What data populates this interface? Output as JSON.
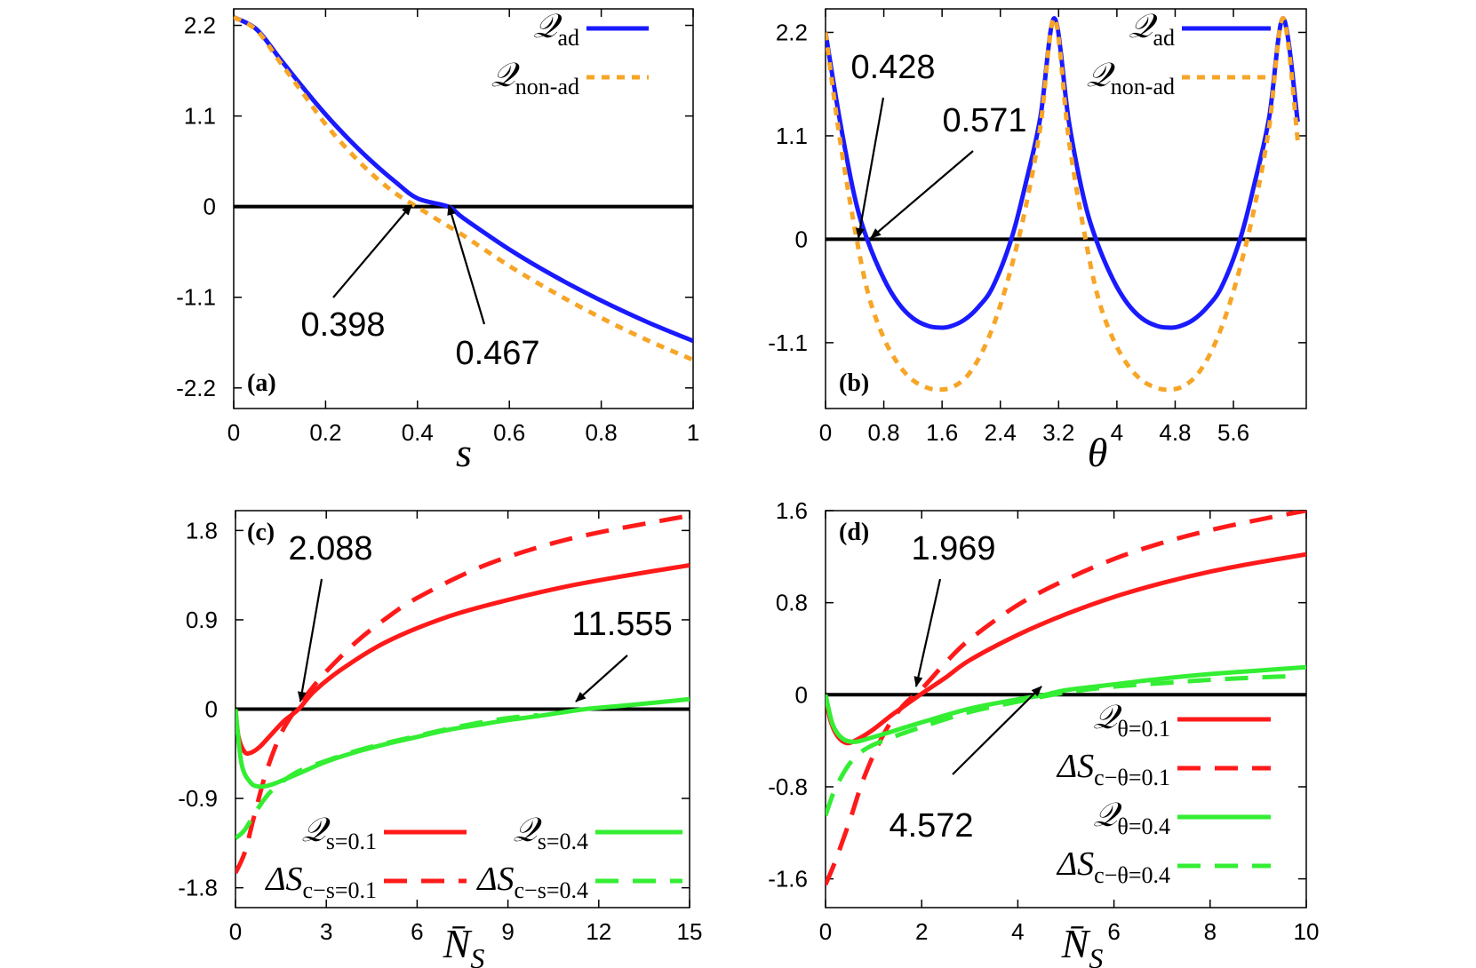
{
  "colors": {
    "blue": "#1a1aff",
    "orange": "#f7a527",
    "red": "#ff1a1a",
    "green": "#33ee33",
    "axis": "#000000"
  },
  "chart_data": [
    {
      "type": "line",
      "panel_label": "(a)",
      "xlabel": "s",
      "xlim": [
        0,
        1
      ],
      "ylim": [
        -2.45,
        2.4
      ],
      "xticks": [
        0,
        0.2,
        0.4,
        0.6,
        0.8,
        1
      ],
      "xtick_labels": [
        "0",
        "0.2",
        "0.4",
        "0.6",
        "0.8",
        "1"
      ],
      "yticks": [
        2.2,
        1.1,
        0,
        -1.1,
        -2.2
      ],
      "ytick_labels": [
        "2.2",
        "1.1",
        "0",
        "-1.1",
        "-2.2"
      ],
      "legend": [
        {
          "main": "𝒬",
          "sub": "ad",
          "color": "#1a1aff",
          "dash": "solid"
        },
        {
          "main": "𝒬",
          "sub": "non-ad",
          "color": "#f7a527",
          "dash": "dotted"
        }
      ],
      "series": [
        {
          "name": "Q_ad",
          "color": "#1a1aff",
          "dash": "solid",
          "x": [
            0,
            0.05,
            0.1,
            0.15,
            0.2,
            0.25,
            0.3,
            0.35,
            0.4,
            0.467,
            0.5,
            0.6,
            0.7,
            0.8,
            0.9,
            1.0
          ],
          "y": [
            2.3,
            2.15,
            1.8,
            1.45,
            1.12,
            0.82,
            0.55,
            0.31,
            0.1,
            0,
            -0.14,
            -0.52,
            -0.85,
            -1.14,
            -1.4,
            -1.63
          ]
        },
        {
          "name": "Q_non-ad",
          "color": "#f7a527",
          "dash": "dotted",
          "x": [
            0,
            0.05,
            0.1,
            0.15,
            0.2,
            0.25,
            0.3,
            0.35,
            0.398,
            0.45,
            0.5,
            0.6,
            0.7,
            0.8,
            0.9,
            1.0
          ],
          "y": [
            2.3,
            2.14,
            1.76,
            1.38,
            1.0,
            0.68,
            0.4,
            0.17,
            0,
            -0.18,
            -0.35,
            -0.72,
            -1.05,
            -1.35,
            -1.62,
            -1.86
          ]
        },
        {
          "name": "zero",
          "color": "#000000",
          "dash": "solid",
          "x": [
            0,
            1
          ],
          "y": [
            0,
            0
          ]
        }
      ],
      "annotations": [
        {
          "text": "0.398",
          "x": 0.398,
          "y": 0
        },
        {
          "text": "0.467",
          "x": 0.467,
          "y": 0
        }
      ]
    },
    {
      "type": "line",
      "panel_label": "(b)",
      "xlabel": "θ",
      "xlim": [
        0,
        6.6
      ],
      "ylim": [
        -1.8,
        2.45
      ],
      "xticks": [
        0,
        0.8,
        1.6,
        2.4,
        3.2,
        4,
        4.8,
        5.6
      ],
      "xtick_labels": [
        "0",
        "0.8",
        "1.6",
        "2.4",
        "3.2",
        "4",
        "4.8",
        "5.6"
      ],
      "yticks": [
        2.2,
        1.1,
        0,
        -1.1
      ],
      "ytick_labels": [
        "2.2",
        "1.1",
        "0",
        "-1.1"
      ],
      "legend": [
        {
          "main": "𝒬",
          "sub": "ad",
          "color": "#1a1aff",
          "dash": "solid"
        },
        {
          "main": "𝒬",
          "sub": "non-ad",
          "color": "#f7a527",
          "dash": "dotted"
        }
      ],
      "series": [
        {
          "name": "Q_ad",
          "color": "#1a1aff",
          "dash": "solid",
          "period": 3.1416,
          "x": [
            0,
            0.2,
            0.4,
            0.571,
            0.8,
            1.0,
            1.2,
            1.4,
            1.571,
            1.7,
            1.9,
            2.1,
            2.3,
            2.55,
            2.75,
            2.95,
            3.1416
          ],
          "y": [
            2.2,
            1.25,
            0.45,
            0,
            -0.42,
            -0.68,
            -0.84,
            -0.92,
            -0.94,
            -0.93,
            -0.86,
            -0.72,
            -0.5,
            0,
            0.6,
            1.3,
            2.35
          ]
        },
        {
          "name": "Q_non-ad",
          "color": "#f7a527",
          "dash": "dotted",
          "period": 3.1416,
          "x": [
            0,
            0.2,
            0.428,
            0.6,
            0.8,
            1.0,
            1.2,
            1.4,
            1.571,
            1.75,
            1.95,
            2.15,
            2.35,
            2.55,
            2.75,
            2.95,
            3.1416
          ],
          "y": [
            2.2,
            1.05,
            0,
            -0.62,
            -1.05,
            -1.33,
            -1.5,
            -1.58,
            -1.6,
            -1.57,
            -1.45,
            -1.2,
            -0.82,
            -0.3,
            0.35,
            1.2,
            2.35
          ]
        },
        {
          "name": "zero",
          "color": "#000000",
          "dash": "solid",
          "x": [
            0,
            6.6
          ],
          "y": [
            0,
            0
          ]
        }
      ],
      "annotations": [
        {
          "text": "0.428",
          "x": 0.428,
          "y": 0
        },
        {
          "text": "0.571",
          "x": 0.571,
          "y": 0
        }
      ]
    },
    {
      "type": "line",
      "panel_label": "(c)",
      "xlabel": "N̄",
      "xlabel_sub": "S",
      "xlim": [
        0,
        15
      ],
      "ylim": [
        -2.0,
        2.0
      ],
      "xticks": [
        0,
        3,
        6,
        9,
        12,
        15
      ],
      "xtick_labels": [
        "0",
        "3",
        "6",
        "9",
        "12",
        "15"
      ],
      "yticks": [
        1.8,
        0.9,
        0,
        -0.9,
        -1.8
      ],
      "ytick_labels": [
        "1.8",
        "0.9",
        "0",
        "-0.9",
        "-1.8"
      ],
      "legend": [
        {
          "main": "𝒬",
          "sub": "s=0.1",
          "color": "#ff1a1a",
          "dash": "solid"
        },
        {
          "main": "ΔS",
          "sub": "c−s=0.1",
          "color": "#ff1a1a",
          "dash": "dashed"
        },
        {
          "main": "𝒬",
          "sub": "s=0.4",
          "color": "#33ee33",
          "dash": "solid"
        },
        {
          "main": "ΔS",
          "sub": "c−s=0.4",
          "color": "#33ee33",
          "dash": "dashed"
        }
      ],
      "series": [
        {
          "name": "Q_s=0.1",
          "color": "#ff1a1a",
          "dash": "solid",
          "x": [
            0,
            0.1,
            0.3,
            0.5,
            0.8,
            1.2,
            1.6,
            2.088,
            2.6,
            3.5,
            5,
            7,
            9,
            11,
            13,
            15
          ],
          "y": [
            0,
            -0.28,
            -0.43,
            -0.44,
            -0.38,
            -0.25,
            -0.12,
            0,
            0.18,
            0.4,
            0.68,
            0.93,
            1.1,
            1.24,
            1.35,
            1.45
          ]
        },
        {
          "name": "dS_c-s=0.1",
          "color": "#ff1a1a",
          "dash": "dashed",
          "x": [
            0,
            0.3,
            0.6,
            1.0,
            1.5,
            2.0,
            2.5,
            3.0,
            4,
            5,
            6,
            8,
            10,
            12,
            15
          ],
          "y": [
            -1.65,
            -1.45,
            -1.1,
            -0.65,
            -0.25,
            0,
            0.2,
            0.38,
            0.68,
            0.92,
            1.12,
            1.42,
            1.63,
            1.78,
            1.95
          ]
        },
        {
          "name": "Q_s=0.4",
          "color": "#33ee33",
          "dash": "solid",
          "x": [
            0,
            0.2,
            0.5,
            0.8,
            1.2,
            2,
            3,
            4,
            5,
            6,
            7,
            8,
            9,
            10,
            11.555,
            13,
            15
          ],
          "y": [
            0,
            -0.55,
            -0.74,
            -0.78,
            -0.76,
            -0.66,
            -0.53,
            -0.43,
            -0.35,
            -0.28,
            -0.21,
            -0.16,
            -0.11,
            -0.07,
            0,
            0.04,
            0.1
          ]
        },
        {
          "name": "dS_c-s=0.4",
          "color": "#33ee33",
          "dash": "dashed",
          "x": [
            0,
            0.3,
            0.7,
            1.2,
            2,
            3,
            4,
            5,
            6,
            7,
            8,
            9,
            10
          ],
          "y": [
            -1.3,
            -1.22,
            -1.02,
            -0.82,
            -0.64,
            -0.52,
            -0.42,
            -0.34,
            -0.27,
            -0.2,
            -0.14,
            -0.09,
            -0.06
          ]
        },
        {
          "name": "zero",
          "color": "#000000",
          "dash": "solid",
          "x": [
            0,
            15
          ],
          "y": [
            0,
            0
          ]
        }
      ],
      "annotations": [
        {
          "text": "2.088",
          "x": 2.088,
          "y": 0
        },
        {
          "text": "11.555",
          "x": 11.555,
          "y": 0
        }
      ]
    },
    {
      "type": "line",
      "panel_label": "(d)",
      "xlabel": "N̄",
      "xlabel_sub": "S",
      "xlim": [
        0,
        10
      ],
      "ylim": [
        -1.85,
        1.6
      ],
      "xticks": [
        0,
        2,
        4,
        6,
        8,
        10
      ],
      "xtick_labels": [
        "0",
        "2",
        "4",
        "6",
        "8",
        "10"
      ],
      "yticks": [
        1.6,
        0.8,
        0,
        -0.8,
        -1.6
      ],
      "ytick_labels": [
        "1.6",
        "0.8",
        "0",
        "-0.8",
        "-1.6"
      ],
      "legend": [
        {
          "main": "𝒬",
          "sub": "θ=0.1",
          "color": "#ff1a1a",
          "dash": "solid"
        },
        {
          "main": "ΔS",
          "sub": "c−θ=0.1",
          "color": "#ff1a1a",
          "dash": "dashed"
        },
        {
          "main": "𝒬",
          "sub": "θ=0.4",
          "color": "#33ee33",
          "dash": "solid"
        },
        {
          "main": "ΔS",
          "sub": "c−θ=0.4",
          "color": "#33ee33",
          "dash": "dashed"
        }
      ],
      "series": [
        {
          "name": "Q_theta=0.1",
          "color": "#ff1a1a",
          "dash": "solid",
          "x": [
            0,
            0.1,
            0.25,
            0.45,
            0.7,
            1.0,
            1.4,
            1.969,
            2.5,
            3,
            4,
            5,
            6,
            7,
            8,
            9,
            10
          ],
          "y": [
            0,
            -0.22,
            -0.36,
            -0.42,
            -0.38,
            -0.3,
            -0.17,
            0,
            0.15,
            0.3,
            0.52,
            0.7,
            0.85,
            0.97,
            1.07,
            1.15,
            1.22
          ]
        },
        {
          "name": "dS_c-theta=0.1",
          "color": "#ff1a1a",
          "dash": "dashed",
          "x": [
            0,
            0.2,
            0.5,
            0.8,
            1.2,
            1.6,
            2.0,
            2.5,
            3,
            4,
            5,
            6,
            7,
            8,
            9,
            10
          ],
          "y": [
            -1.65,
            -1.45,
            -1.1,
            -0.72,
            -0.35,
            -0.1,
            0.05,
            0.28,
            0.48,
            0.78,
            1.0,
            1.18,
            1.32,
            1.43,
            1.52,
            1.6
          ]
        },
        {
          "name": "Q_theta=0.4",
          "color": "#33ee33",
          "dash": "solid",
          "x": [
            0,
            0.15,
            0.35,
            0.6,
            0.9,
            1.3,
            2,
            3,
            4,
            4.572,
            5,
            6,
            7,
            8,
            9,
            10
          ],
          "y": [
            0,
            -0.26,
            -0.38,
            -0.41,
            -0.38,
            -0.33,
            -0.24,
            -0.12,
            -0.04,
            0,
            0.04,
            0.09,
            0.14,
            0.18,
            0.21,
            0.24
          ]
        },
        {
          "name": "dS_c-theta=0.4",
          "color": "#33ee33",
          "dash": "dashed",
          "x": [
            0,
            0.2,
            0.5,
            0.8,
            1.2,
            2,
            3,
            4,
            5,
            6,
            7,
            8,
            9,
            9.6
          ],
          "y": [
            -1.05,
            -0.82,
            -0.6,
            -0.48,
            -0.4,
            -0.28,
            -0.15,
            -0.06,
            0.02,
            0.07,
            0.1,
            0.13,
            0.15,
            0.16
          ]
        },
        {
          "name": "zero",
          "color": "#000000",
          "dash": "solid",
          "x": [
            0,
            10
          ],
          "y": [
            0,
            0
          ]
        }
      ],
      "annotations": [
        {
          "text": "1.969",
          "x": 1.969,
          "y": 0
        },
        {
          "text": "4.572",
          "x": 4.572,
          "y": 0
        }
      ]
    }
  ]
}
